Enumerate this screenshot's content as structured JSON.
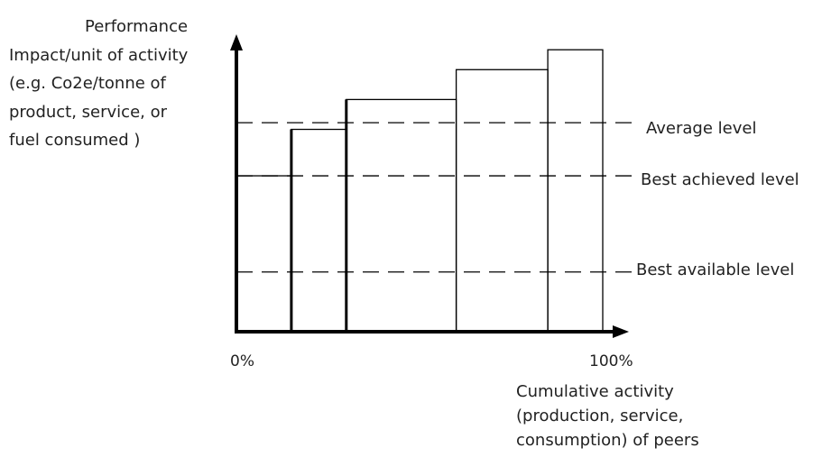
{
  "y_axis_label": [
    "Performance",
    "Impact/unit of activity",
    "(e.g. Co2e/tonne of",
    "product, service, or",
    "fuel consumed )"
  ],
  "x_axis_label": [
    "Cumulative activity",
    "(production, service,",
    "consumption) of peers"
  ],
  "x_ticks": {
    "start": "0%",
    "end": "100%"
  },
  "levels": {
    "average": "Average level",
    "best_achieved": "Best achieved level",
    "best_available": "Best available  level"
  },
  "chart_data": {
    "type": "bar",
    "note_shape": "variable-width step bars (performance curve)",
    "x_range_percent": [
      0,
      100
    ],
    "bars": [
      {
        "x_start": 0,
        "x_end": 15,
        "height": 0.47
      },
      {
        "x_start": 15,
        "x_end": 30,
        "height": 0.61
      },
      {
        "x_start": 30,
        "x_end": 60,
        "height": 0.7
      },
      {
        "x_start": 60,
        "x_end": 85,
        "height": 0.79
      },
      {
        "x_start": 85,
        "x_end": 100,
        "height": 0.85
      }
    ],
    "reference_lines": [
      {
        "label": "Average level",
        "height": 0.63
      },
      {
        "label": "Best achieved level",
        "height": 0.47
      },
      {
        "label": "Best available  level",
        "height": 0.18
      }
    ]
  },
  "colors": {
    "line": "#000000",
    "text": "#222222",
    "background": "#ffffff"
  }
}
